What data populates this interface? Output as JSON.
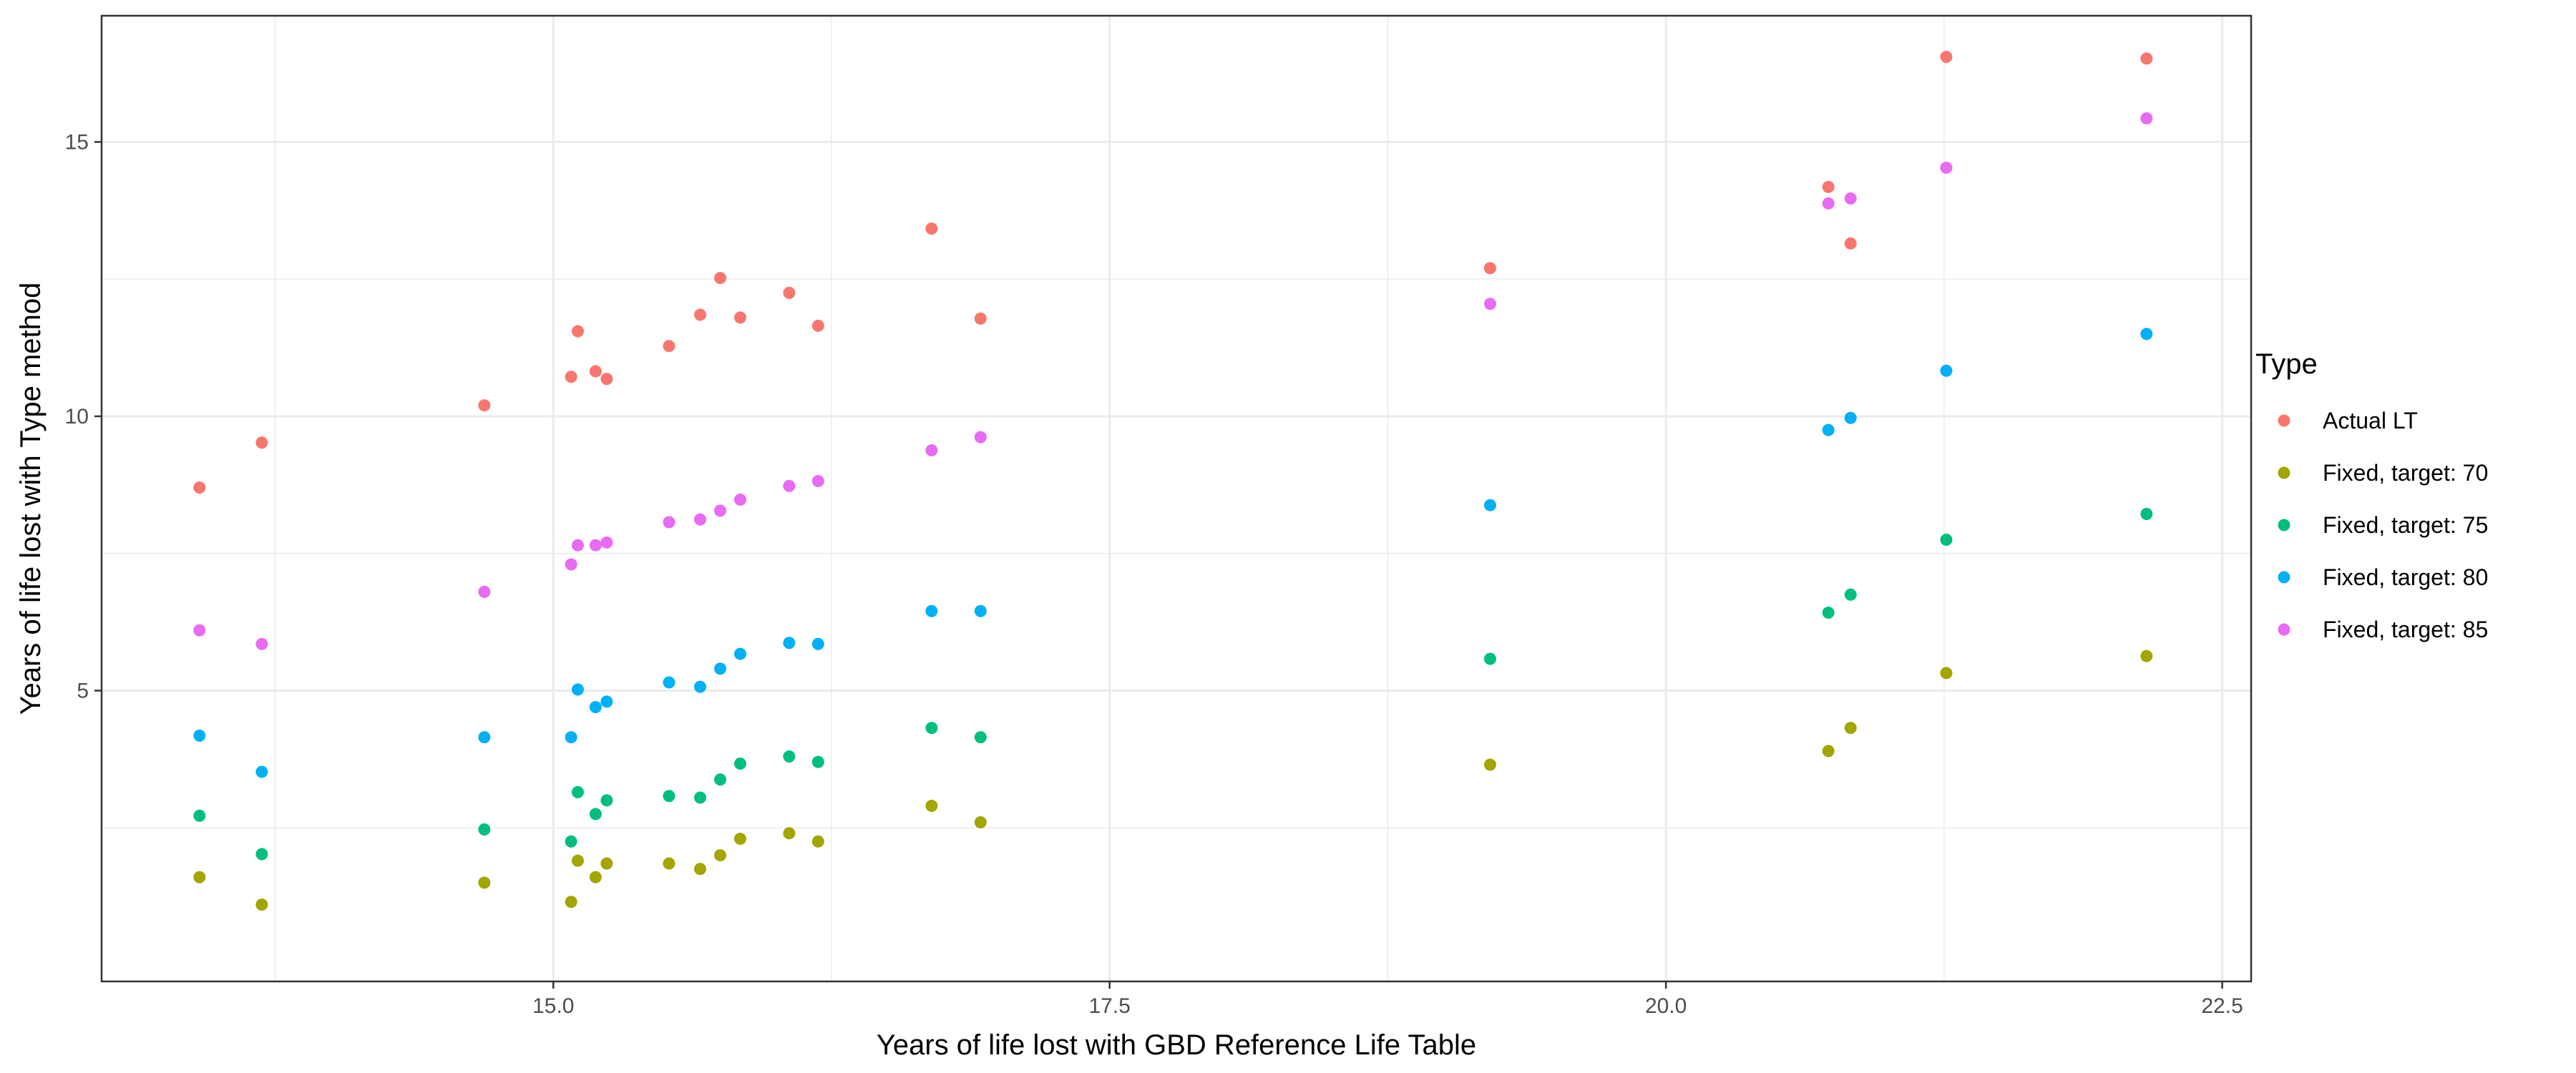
{
  "chart_data": {
    "type": "scatter",
    "title": "",
    "xlabel": "Years of life lost with GBD Reference Life Table",
    "ylabel": "Years of life lost with Type method",
    "xlim": [
      12.97,
      22.63
    ],
    "ylim": [
      -0.3,
      17.3
    ],
    "x_ticks": [
      "15.0",
      "17.5",
      "20.0",
      "22.5"
    ],
    "y_ticks": [
      "5",
      "10",
      "15"
    ],
    "grid": true,
    "legend": {
      "title": "Type",
      "position": "right"
    },
    "series": [
      {
        "name": "Actual LT",
        "color": "#F8766D",
        "points": [
          [
            13.41,
            8.7
          ],
          [
            13.69,
            9.52
          ],
          [
            14.69,
            10.2
          ],
          [
            15.08,
            10.72
          ],
          [
            15.11,
            11.55
          ],
          [
            15.19,
            10.82
          ],
          [
            15.24,
            10.68
          ],
          [
            15.52,
            11.28
          ],
          [
            15.66,
            11.85
          ],
          [
            15.75,
            12.52
          ],
          [
            15.84,
            11.8
          ],
          [
            16.06,
            12.25
          ],
          [
            16.19,
            11.65
          ],
          [
            16.7,
            13.42
          ],
          [
            16.92,
            11.78
          ],
          [
            19.21,
            12.7
          ],
          [
            20.73,
            14.18
          ],
          [
            20.83,
            13.15
          ],
          [
            21.26,
            16.55
          ],
          [
            22.16,
            16.52
          ]
        ]
      },
      {
        "name": "Fixed, target: 70",
        "color": "#A3A500",
        "points": [
          [
            13.41,
            1.6
          ],
          [
            13.69,
            1.1
          ],
          [
            14.69,
            1.5
          ],
          [
            15.08,
            1.15
          ],
          [
            15.11,
            1.9
          ],
          [
            15.19,
            1.6
          ],
          [
            15.24,
            1.85
          ],
          [
            15.52,
            1.85
          ],
          [
            15.66,
            1.75
          ],
          [
            15.75,
            2.0
          ],
          [
            15.84,
            2.3
          ],
          [
            16.06,
            2.4
          ],
          [
            16.19,
            2.25
          ],
          [
            16.7,
            2.9
          ],
          [
            16.92,
            2.6
          ],
          [
            19.21,
            3.65
          ],
          [
            20.73,
            3.9
          ],
          [
            20.83,
            4.32
          ],
          [
            21.26,
            5.32
          ],
          [
            22.16,
            5.63
          ]
        ]
      },
      {
        "name": "Fixed, target: 75",
        "color": "#00BF7D",
        "points": [
          [
            13.41,
            2.72
          ],
          [
            13.69,
            2.02
          ],
          [
            14.69,
            2.47
          ],
          [
            15.08,
            2.25
          ],
          [
            15.11,
            3.15
          ],
          [
            15.19,
            2.75
          ],
          [
            15.24,
            3.0
          ],
          [
            15.52,
            3.08
          ],
          [
            15.66,
            3.05
          ],
          [
            15.75,
            3.38
          ],
          [
            15.84,
            3.67
          ],
          [
            16.06,
            3.8
          ],
          [
            16.19,
            3.7
          ],
          [
            16.7,
            4.32
          ],
          [
            16.92,
            4.15
          ],
          [
            19.21,
            5.58
          ],
          [
            20.73,
            6.42
          ],
          [
            20.83,
            6.75
          ],
          [
            21.26,
            7.75
          ],
          [
            22.16,
            8.22
          ]
        ]
      },
      {
        "name": "Fixed, target: 80",
        "color": "#00B0F6",
        "points": [
          [
            13.41,
            4.18
          ],
          [
            13.69,
            3.52
          ],
          [
            14.69,
            4.15
          ],
          [
            15.08,
            4.15
          ],
          [
            15.11,
            5.02
          ],
          [
            15.19,
            4.7
          ],
          [
            15.24,
            4.8
          ],
          [
            15.52,
            5.15
          ],
          [
            15.66,
            5.07
          ],
          [
            15.75,
            5.4
          ],
          [
            15.84,
            5.67
          ],
          [
            16.06,
            5.87
          ],
          [
            16.19,
            5.85
          ],
          [
            16.7,
            6.45
          ],
          [
            16.92,
            6.45
          ],
          [
            19.21,
            8.38
          ],
          [
            20.73,
            9.75
          ],
          [
            20.83,
            9.97
          ],
          [
            21.26,
            10.83
          ],
          [
            22.16,
            11.5
          ]
        ]
      },
      {
        "name": "Fixed, target: 85",
        "color": "#E76BF3",
        "points": [
          [
            13.41,
            6.1
          ],
          [
            13.69,
            5.85
          ],
          [
            14.69,
            6.8
          ],
          [
            15.08,
            7.3
          ],
          [
            15.11,
            7.65
          ],
          [
            15.19,
            7.65
          ],
          [
            15.24,
            7.7
          ],
          [
            15.52,
            8.07
          ],
          [
            15.66,
            8.12
          ],
          [
            15.75,
            8.28
          ],
          [
            15.84,
            8.48
          ],
          [
            16.06,
            8.73
          ],
          [
            16.19,
            8.82
          ],
          [
            16.7,
            9.38
          ],
          [
            16.92,
            9.62
          ],
          [
            19.21,
            12.05
          ],
          [
            20.73,
            13.88
          ],
          [
            20.83,
            13.97
          ],
          [
            21.26,
            14.53
          ],
          [
            22.16,
            15.43
          ]
        ]
      }
    ]
  }
}
